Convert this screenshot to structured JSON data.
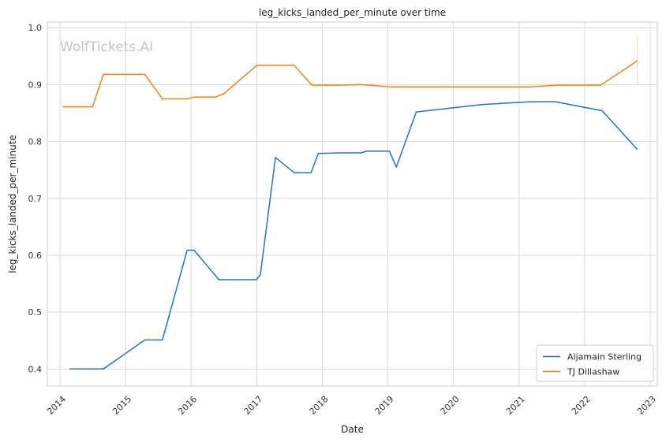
{
  "chart_data": {
    "type": "line",
    "title": "leg_kicks_landed_per_minute over time",
    "xlabel": "Date",
    "ylabel": "leg_kicks_landed_per_minute",
    "watermark": "WolfTickets.AI",
    "xlim": [
      "2013-10-22",
      "2023-02-10"
    ],
    "ylim": [
      0.37,
      1.01
    ],
    "x_ticks": [
      "2014",
      "2015",
      "2016",
      "2017",
      "2018",
      "2019",
      "2020",
      "2021",
      "2022",
      "2023"
    ],
    "y_ticks": [
      "0.4",
      "0.5",
      "0.6",
      "0.7",
      "0.8",
      "0.9",
      "1.0"
    ],
    "grid": true,
    "legend_position": "bottom-right",
    "series": [
      {
        "name": "Aljamain Sterling",
        "color": "#1f77b4",
        "points": [
          [
            "2014-02-22",
            0.4
          ],
          [
            "2014-08-30",
            0.4
          ],
          [
            "2015-04-18",
            0.451
          ],
          [
            "2015-07-25",
            0.451
          ],
          [
            "2015-12-10",
            0.609
          ],
          [
            "2016-01-17",
            0.609
          ],
          [
            "2016-06-04",
            0.557
          ],
          [
            "2016-12-30",
            0.557
          ],
          [
            "2017-01-21",
            0.566
          ],
          [
            "2017-04-15",
            0.772
          ],
          [
            "2017-07-29",
            0.745
          ],
          [
            "2017-10-30",
            0.745
          ],
          [
            "2017-12-09",
            0.779
          ],
          [
            "2018-04-21",
            0.78
          ],
          [
            "2018-08-04",
            0.78
          ],
          [
            "2018-09-05",
            0.783
          ],
          [
            "2019-01-10",
            0.783
          ],
          [
            "2019-02-17",
            0.755
          ],
          [
            "2019-06-08",
            0.852
          ],
          [
            "2020-06-06",
            0.865
          ],
          [
            "2021-03-06",
            0.87
          ],
          [
            "2021-07-22",
            0.87
          ],
          [
            "2022-04-09",
            0.854
          ],
          [
            "2022-10-22",
            0.786
          ]
        ]
      },
      {
        "name": "TJ Dillashaw",
        "color": "#ff7f0e",
        "points": [
          [
            "2014-01-15",
            0.861
          ],
          [
            "2014-07-01",
            0.861
          ],
          [
            "2014-08-30",
            0.918
          ],
          [
            "2015-04-18",
            0.918
          ],
          [
            "2015-07-25",
            0.875
          ],
          [
            "2015-12-10",
            0.875
          ],
          [
            "2016-01-17",
            0.878
          ],
          [
            "2016-05-15",
            0.878
          ],
          [
            "2016-07-01",
            0.884
          ],
          [
            "2017-01-01",
            0.934
          ],
          [
            "2017-07-29",
            0.934
          ],
          [
            "2017-11-04",
            0.899
          ],
          [
            "2018-04-01",
            0.899
          ],
          [
            "2018-08-04",
            0.9
          ],
          [
            "2019-01-19",
            0.896
          ],
          [
            "2021-03-01",
            0.896
          ],
          [
            "2021-07-24",
            0.899
          ],
          [
            "2022-04-01",
            0.899
          ],
          [
            "2022-10-22",
            0.942
          ]
        ]
      }
    ],
    "error_marks": [
      {
        "series": "TJ Dillashaw",
        "x": "2022-10-22",
        "low": 0.9,
        "high": 0.985
      }
    ]
  }
}
